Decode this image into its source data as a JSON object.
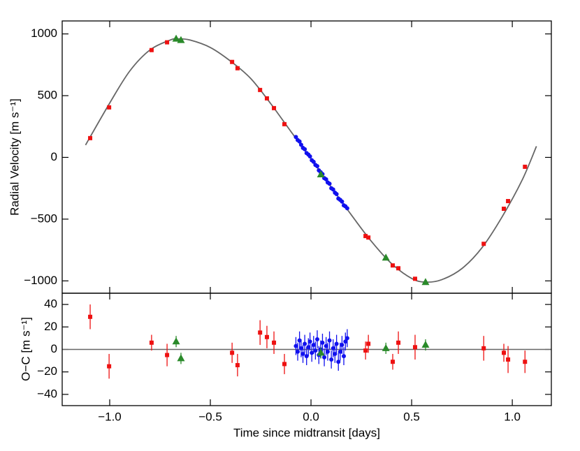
{
  "chart_data": [
    {
      "type": "scatter",
      "ylabel": "Radial Velocity [m s⁻¹]",
      "xlim": [
        -1.236,
        1.194
      ],
      "xticks": [
        -1,
        -0.5,
        0,
        0.5,
        1
      ],
      "ylim": [
        -1100,
        1105
      ],
      "yticks": [
        {
          "value": -1000,
          "label": "−1000"
        },
        {
          "value": -500,
          "label": "−500"
        },
        0,
        500,
        1000
      ],
      "series": [
        {
          "marker": "line",
          "color": "#666666",
          "x": [
            -1.12,
            -1.0,
            -0.9,
            -0.8,
            -0.7,
            -0.66,
            -0.6,
            -0.5,
            -0.4,
            -0.3,
            -0.2,
            -0.1,
            0,
            0.1,
            0.2,
            0.3,
            0.4,
            0.5,
            0.57,
            0.65,
            0.75,
            0.85,
            0.95,
            1.05,
            1.12
          ],
          "values": [
            100,
            440,
            700,
            870,
            950,
            960,
            950,
            890,
            780,
            640,
            435,
            210,
            -10,
            -240,
            -465,
            -680,
            -860,
            -980,
            -1010,
            -990,
            -900,
            -730,
            -480,
            -180,
            90
          ]
        },
        {
          "marker": "square",
          "color": "#ee1111",
          "x": [
            -1.097,
            -1.003,
            -0.792,
            -0.715,
            -0.392,
            -0.365,
            -0.253,
            -0.219,
            -0.184,
            -0.132,
            0.271,
            0.285,
            0.406,
            0.434,
            0.517,
            0.858,
            0.958,
            0.979,
            1.063
          ],
          "values": [
            156,
            405,
            869,
            932,
            773,
            722,
            546,
            478,
            399,
            269,
            -637,
            -649,
            -875,
            -898,
            -983,
            -700,
            -416,
            -354,
            -76
          ]
        },
        {
          "marker": "circle",
          "color": "#1010ee",
          "x": [
            -0.075,
            -0.066,
            -0.057,
            -0.049,
            -0.04,
            -0.031,
            -0.022,
            -0.013,
            -0.005,
            0.004,
            0.013,
            0.022,
            0.031,
            0.039,
            0.048,
            0.057,
            0.066,
            0.075,
            0.083,
            0.092,
            0.101,
            0.11,
            0.119,
            0.127,
            0.136,
            0.145,
            0.154,
            0.163,
            0.171,
            0.18
          ],
          "values": [
            165,
            140,
            129,
            102,
            77,
            66,
            35,
            23,
            8,
            -23,
            -36,
            -61,
            -71,
            -105,
            -120,
            -135,
            -168,
            -178,
            -203,
            -213,
            -250,
            -260,
            -286,
            -297,
            -333,
            -344,
            -358,
            -388,
            -396,
            -412
          ]
        },
        {
          "marker": "triangle",
          "color": "#2a8a2a",
          "x": [
            -0.67,
            -0.646,
            0.049,
            0.372,
            0.569
          ],
          "values": [
            960,
            949,
            -139,
            -813,
            -1011
          ]
        }
      ]
    },
    {
      "type": "scatter",
      "ylabel": "O−C [m s⁻¹]",
      "xlabel": "Time since midtransit [days]",
      "xlim": [
        -1.236,
        1.194
      ],
      "xticks": [
        {
          "value": -1,
          "label": "−1.0"
        },
        {
          "value": -0.5,
          "label": "−0.5"
        },
        {
          "value": 0,
          "label": "0.0"
        },
        {
          "value": 0.5,
          "label": "0.5"
        },
        {
          "value": 1,
          "label": "1.0"
        }
      ],
      "ylim": [
        -50,
        50
      ],
      "yticks": [
        {
          "value": -40,
          "label": "−40"
        },
        {
          "value": -20,
          "label": "−20"
        },
        0,
        20,
        40
      ],
      "reference_line": 0,
      "reference_color": "#666666",
      "series": [
        {
          "marker": "square",
          "color": "#ee1111",
          "x": [
            -1.097,
            -1.003,
            -0.792,
            -0.715,
            -0.392,
            -0.365,
            -0.253,
            -0.219,
            -0.184,
            -0.132,
            0.271,
            0.285,
            0.406,
            0.434,
            0.517,
            0.858,
            0.958,
            0.979,
            1.063
          ],
          "values": [
            29,
            -15,
            6,
            -5,
            -3,
            -14,
            15,
            11,
            6,
            -13,
            -1,
            5,
            -11,
            6,
            2,
            1,
            -3,
            -9,
            -11
          ],
          "errors": [
            11,
            11,
            7,
            10,
            9,
            10,
            11,
            10,
            10,
            9,
            8,
            8,
            7,
            10,
            11,
            11,
            8,
            12,
            10
          ]
        },
        {
          "marker": "circle",
          "color": "#1010ee",
          "x": [
            -0.075,
            -0.066,
            -0.057,
            -0.049,
            -0.04,
            -0.031,
            -0.022,
            -0.013,
            -0.005,
            0.004,
            0.013,
            0.022,
            0.031,
            0.039,
            0.048,
            0.057,
            0.066,
            0.075,
            0.083,
            0.092,
            0.101,
            0.11,
            0.119,
            0.127,
            0.136,
            0.145,
            0.154,
            0.163,
            0.171,
            0.18
          ],
          "values": [
            3,
            -2,
            8,
            1,
            -4,
            5,
            -6,
            2,
            7,
            -3,
            4,
            -1,
            9,
            -5,
            0,
            6,
            -7,
            3,
            -2,
            8,
            -9,
            1,
            -4,
            5,
            -11,
            -2,
            4,
            -6,
            7,
            10
          ],
          "errors": [
            8,
            8,
            8,
            8,
            8,
            8,
            8,
            8,
            8,
            8,
            8,
            8,
            8,
            8,
            8,
            8,
            8,
            8,
            8,
            8,
            8,
            8,
            8,
            8,
            8,
            8,
            8,
            8,
            8,
            8
          ]
        },
        {
          "marker": "triangle",
          "color": "#2a8a2a",
          "x": [
            -0.67,
            -0.646,
            0.049,
            0.372,
            0.569
          ],
          "values": [
            7,
            -8,
            -3,
            1,
            4
          ],
          "errors": [
            5,
            5,
            5,
            5,
            5
          ]
        }
      ]
    }
  ]
}
